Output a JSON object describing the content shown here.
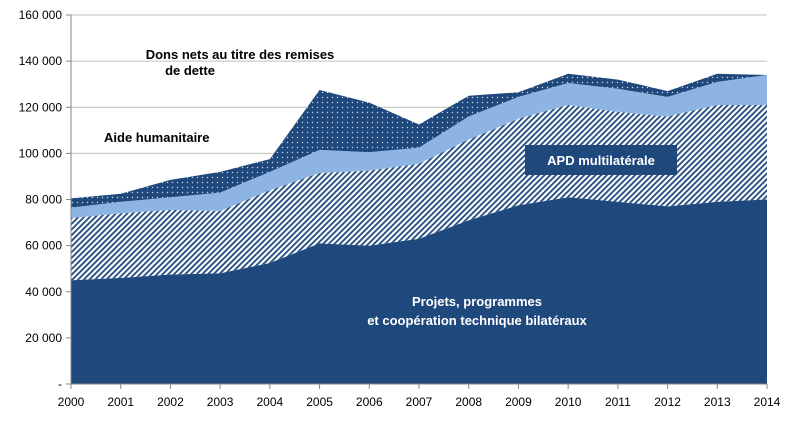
{
  "chart_data": {
    "type": "area",
    "stacked": true,
    "title": "",
    "xlabel": "",
    "ylabel": "",
    "x": [
      2000,
      2001,
      2002,
      2003,
      2004,
      2005,
      2006,
      2007,
      2008,
      2009,
      2010,
      2011,
      2012,
      2013,
      2014
    ],
    "ylim": [
      0,
      160000
    ],
    "yticks": [
      "-",
      "20 000",
      "40 000",
      "60 000",
      "80 000",
      "100 000",
      "120 000",
      "140 000",
      "160 000"
    ],
    "grid": true,
    "series": [
      {
        "name": "Projets, programmes et coopération technique bilatéraux",
        "color": "#1f497d",
        "fill": "solid",
        "values": [
          45000,
          46000,
          47500,
          48000,
          52500,
          61000,
          60000,
          63000,
          71000,
          77500,
          81000,
          79000,
          77000,
          79000,
          80000
        ]
      },
      {
        "name": "APD multilatérale",
        "color": "#1f497d",
        "fill": "diagonal-hatch",
        "values": [
          27000,
          28000,
          28000,
          27000,
          31500,
          30500,
          32500,
          32500,
          35000,
          37500,
          40000,
          39000,
          39000,
          42000,
          41000
        ]
      },
      {
        "name": "Aide humanitaire",
        "color": "#8eb4e3",
        "fill": "solid",
        "values": [
          4500,
          5000,
          5500,
          8000,
          8000,
          10000,
          8000,
          7000,
          10000,
          9500,
          9500,
          10000,
          8500,
          10000,
          13000
        ]
      },
      {
        "name": "Dons nets au titre des remises de dette",
        "color": "#1f497d",
        "fill": "dotted",
        "values": [
          4000,
          3500,
          7500,
          9000,
          5500,
          26000,
          21500,
          10000,
          9000,
          2000,
          4000,
          4000,
          2500,
          3500,
          0
        ]
      }
    ],
    "annotations": {
      "debt": [
        "Dons nets au titre des remises",
        "de dette"
      ],
      "humanitarian": "Aide humanitaire",
      "multilateral": "APD multilatérale",
      "projects": [
        "Projets, programmes",
        "et coopération technique bilatéraux"
      ]
    }
  }
}
